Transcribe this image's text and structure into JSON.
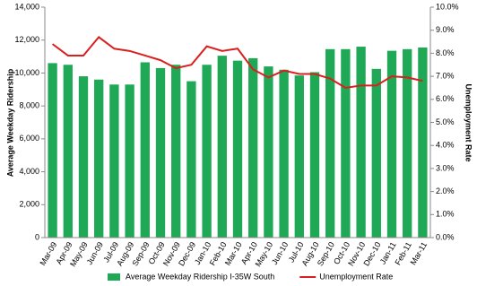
{
  "chart_data": {
    "type": "bar-line",
    "y_label": "Average Weekday Ridership",
    "y2_label": "Unemployment Rate",
    "categories": [
      "Mar-09",
      "Apr-09",
      "May-09",
      "Jun-09",
      "Jul-09",
      "Aug-09",
      "Sep-09",
      "Oct-09",
      "Nov-09",
      "Dec-09",
      "Jan-10",
      "Feb-10",
      "Mar-10",
      "Apr-10",
      "May-10",
      "Jun-10",
      "Jul-10",
      "Aug-10",
      "Sep-10",
      "Oct-10",
      "Nov-10",
      "Dec-10",
      "Jan-11",
      "Feb-11",
      "Mar-11"
    ],
    "series": [
      {
        "name": "Average Weekday Ridership I-35W South",
        "color": "#1fa855",
        "kind": "bar",
        "values": [
          10600,
          10500,
          9800,
          9600,
          9300,
          9300,
          10650,
          10300,
          10500,
          9500,
          10500,
          11050,
          10750,
          10900,
          10400,
          10200,
          9850,
          10050,
          11450,
          11450,
          11600,
          10250,
          11350,
          11450,
          11550
        ]
      },
      {
        "name": "Unemployment Rate",
        "color": "#d9201f",
        "kind": "line",
        "axis": "y2",
        "values": [
          8.4,
          7.9,
          7.9,
          8.7,
          8.2,
          8.1,
          7.9,
          7.7,
          7.35,
          7.5,
          8.3,
          8.1,
          8.2,
          7.3,
          6.95,
          7.25,
          7.1,
          7.1,
          6.9,
          6.5,
          6.6,
          6.6,
          7.0,
          6.95,
          6.8
        ]
      }
    ],
    "ylim": [
      0,
      14000
    ],
    "yticks": [
      0,
      {
        "value": 2000,
        "label": "2,000"
      },
      {
        "value": 4000,
        "label": "4,000"
      },
      {
        "value": 6000,
        "label": "6,000"
      },
      {
        "value": 8000,
        "label": "8,000"
      },
      {
        "value": 10000,
        "label": "10,000"
      },
      {
        "value": 12000,
        "label": "12,000"
      },
      {
        "value": 14000,
        "label": "14,000"
      }
    ],
    "y2lim": [
      0,
      10
    ],
    "y2ticks": [
      {
        "value": 0,
        "label": "0.0%"
      },
      {
        "value": 1,
        "label": "1.0%"
      },
      {
        "value": 2,
        "label": "2.0%"
      },
      {
        "value": 3,
        "label": "3.0%"
      },
      {
        "value": 4,
        "label": "4.0%"
      },
      {
        "value": 5,
        "label": "5.0%"
      },
      {
        "value": 6,
        "label": "6.0%"
      },
      {
        "value": 7,
        "label": "7.0%"
      },
      {
        "value": 8,
        "label": "8.0%"
      },
      {
        "value": 9,
        "label": "9.0%"
      },
      {
        "value": 10,
        "label": "10.0%"
      }
    ],
    "grid": false,
    "legend": "bottom"
  }
}
